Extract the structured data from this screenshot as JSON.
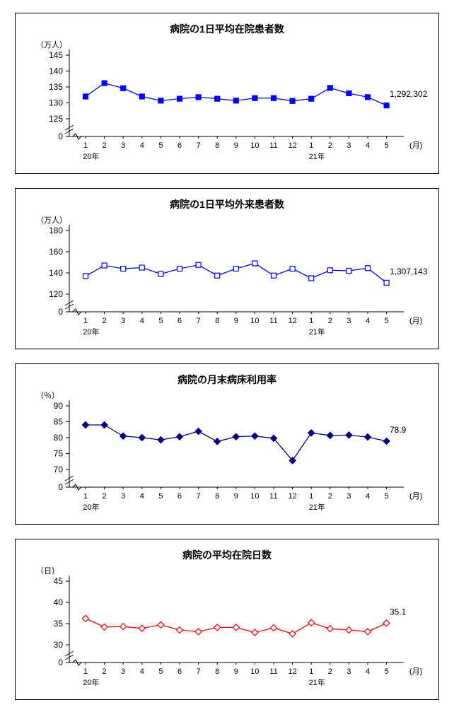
{
  "x_axis": {
    "categories": [
      "1",
      "2",
      "3",
      "4",
      "5",
      "6",
      "7",
      "8",
      "9",
      "10",
      "11",
      "12",
      "1",
      "2",
      "3",
      "4",
      "5"
    ],
    "year_labels": [
      {
        "text": "20年",
        "index": 0
      },
      {
        "text": "21年",
        "index": 12
      }
    ],
    "month_unit": "(月)"
  },
  "chart_data": [
    {
      "type": "line",
      "title": "病院の1日平均在院患者数",
      "unit_label": "（万人）",
      "y_ticks": [
        145,
        140,
        135,
        130,
        125
      ],
      "ylim": [
        125,
        145
      ],
      "zero_label": "0",
      "axis_break": true,
      "final_label": "1,292,302",
      "color": "#0000ff",
      "marker": "square-filled",
      "values": [
        132,
        136.2,
        134.6,
        132,
        130.7,
        131.3,
        131.8,
        131.3,
        130.7,
        131.5,
        131.5,
        130.6,
        131.3,
        134.7,
        133,
        131.8,
        129.2
      ]
    },
    {
      "type": "line",
      "title": "病院の1日平均外来患者数",
      "unit_label": "（万人）",
      "y_ticks": [
        180,
        160,
        140,
        120
      ],
      "ylim": [
        120,
        180
      ],
      "zero_label": "0",
      "axis_break": true,
      "final_label": "1,307,143",
      "color": "#0000ff",
      "marker": "square-open",
      "values": [
        137,
        147,
        144,
        145,
        139,
        144,
        147.5,
        137.5,
        144,
        149,
        137.5,
        144,
        135,
        142.5,
        142,
        144.5,
        130.7
      ]
    },
    {
      "type": "line",
      "title": "病院の月末病床利用率",
      "unit_label": "（％）",
      "y_ticks": [
        90,
        85,
        80,
        75,
        70
      ],
      "ylim": [
        70,
        90
      ],
      "zero_label": "0",
      "axis_break": true,
      "final_label": "78.9",
      "color": "#000080",
      "marker": "diamond-filled",
      "values": [
        84,
        84,
        80.5,
        80,
        79.3,
        80.3,
        82,
        78.8,
        80.3,
        80.5,
        79.8,
        72.8,
        81.5,
        80.7,
        80.8,
        80.2,
        78.9
      ]
    },
    {
      "type": "line",
      "title": "病院の平均在院日数",
      "unit_label": "（日）",
      "y_ticks": [
        45,
        40,
        35,
        30
      ],
      "ylim": [
        30,
        45
      ],
      "zero_label": "0",
      "axis_break": true,
      "final_label": "35.1",
      "color": "#ff0000",
      "marker": "diamond-open",
      "values": [
        36.2,
        34.2,
        34.3,
        33.9,
        34.7,
        33.5,
        33.1,
        34.1,
        34.1,
        32.9,
        34,
        32.6,
        35.2,
        33.8,
        33.5,
        33.1,
        35.1
      ]
    }
  ]
}
